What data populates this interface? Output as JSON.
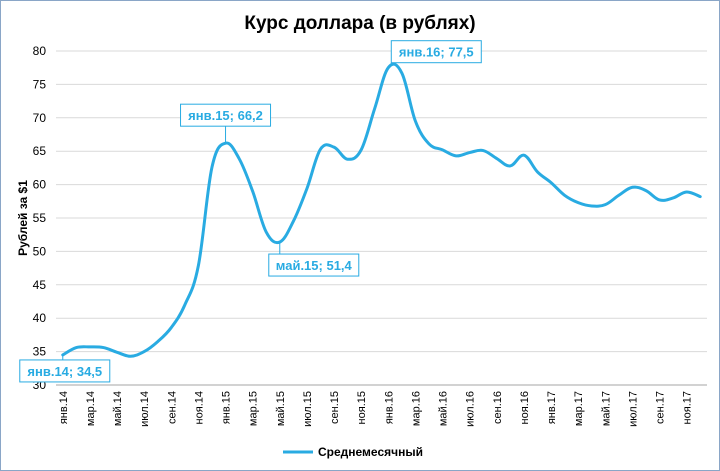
{
  "chart_data": {
    "type": "line",
    "title": "Курс доллара (в рублях)",
    "ylabel": "Рублей за $1",
    "xlabel": "",
    "ylim": [
      30,
      80
    ],
    "yticks": [
      30,
      35,
      40,
      45,
      50,
      55,
      60,
      65,
      70,
      75,
      80
    ],
    "grid": "horizontal",
    "legend_position": "bottom",
    "line_color": "#29abe2",
    "x": [
      "янв.14",
      "фев.14",
      "мар.14",
      "апр.14",
      "май.14",
      "июн.14",
      "июл.14",
      "авг.14",
      "сен.14",
      "окт.14",
      "ноя.14",
      "дек.14",
      "янв.15",
      "фев.15",
      "мар.15",
      "апр.15",
      "май.15",
      "июн.15",
      "июл.15",
      "авг.15",
      "сен.15",
      "окт.15",
      "ноя.15",
      "дек.15",
      "янв.16",
      "фев.16",
      "мар.16",
      "апр.16",
      "май.16",
      "июн.16",
      "июл.16",
      "авг.16",
      "сен.16",
      "окт.16",
      "ноя.16",
      "дек.16",
      "янв.17",
      "фев.17",
      "мар.17",
      "апр.17",
      "май.17",
      "июн.17",
      "июл.17",
      "авг.17",
      "сен.17",
      "окт.17",
      "ноя.17",
      "дек.17"
    ],
    "tick_labels": [
      "янв.14",
      "мар.14",
      "май.14",
      "июл.14",
      "сен.14",
      "ноя.14",
      "янв.15",
      "мар.15",
      "май.15",
      "июл.15",
      "сен.15",
      "ноя.15",
      "янв.16",
      "мар.16",
      "май.16",
      "июл.16",
      "сен.16",
      "ноя.16",
      "янв.17",
      "мар.17",
      "май.17",
      "июл.17",
      "сен.17",
      "ноя.17"
    ],
    "series": [
      {
        "name": "Среднемесячный",
        "values": [
          34.5,
          35.6,
          35.7,
          35.6,
          34.9,
          34.3,
          35.0,
          36.5,
          38.6,
          42.0,
          47.9,
          62.6,
          66.2,
          63.9,
          59.0,
          52.9,
          51.4,
          54.5,
          59.4,
          65.3,
          65.6,
          63.8,
          65.2,
          71.4,
          77.5,
          76.7,
          69.5,
          66.1,
          65.2,
          64.3,
          64.8,
          65.1,
          63.9,
          62.8,
          64.4,
          61.9,
          60.3,
          58.4,
          57.3,
          56.8,
          57.0,
          58.4,
          59.6,
          59.1,
          57.7,
          58.0,
          58.9,
          58.2
        ]
      }
    ],
    "annotations": [
      {
        "text": "янв.14; 34,5",
        "x": "янв.14",
        "y": 34.5
      },
      {
        "text": "янв.15; 66,2",
        "x": "янв.15",
        "y": 66.2
      },
      {
        "text": "май.15; 51,4",
        "x": "май.15",
        "y": 51.4
      },
      {
        "text": "янв.16; 77,5",
        "x": "янв.16",
        "y": 77.5
      }
    ]
  }
}
